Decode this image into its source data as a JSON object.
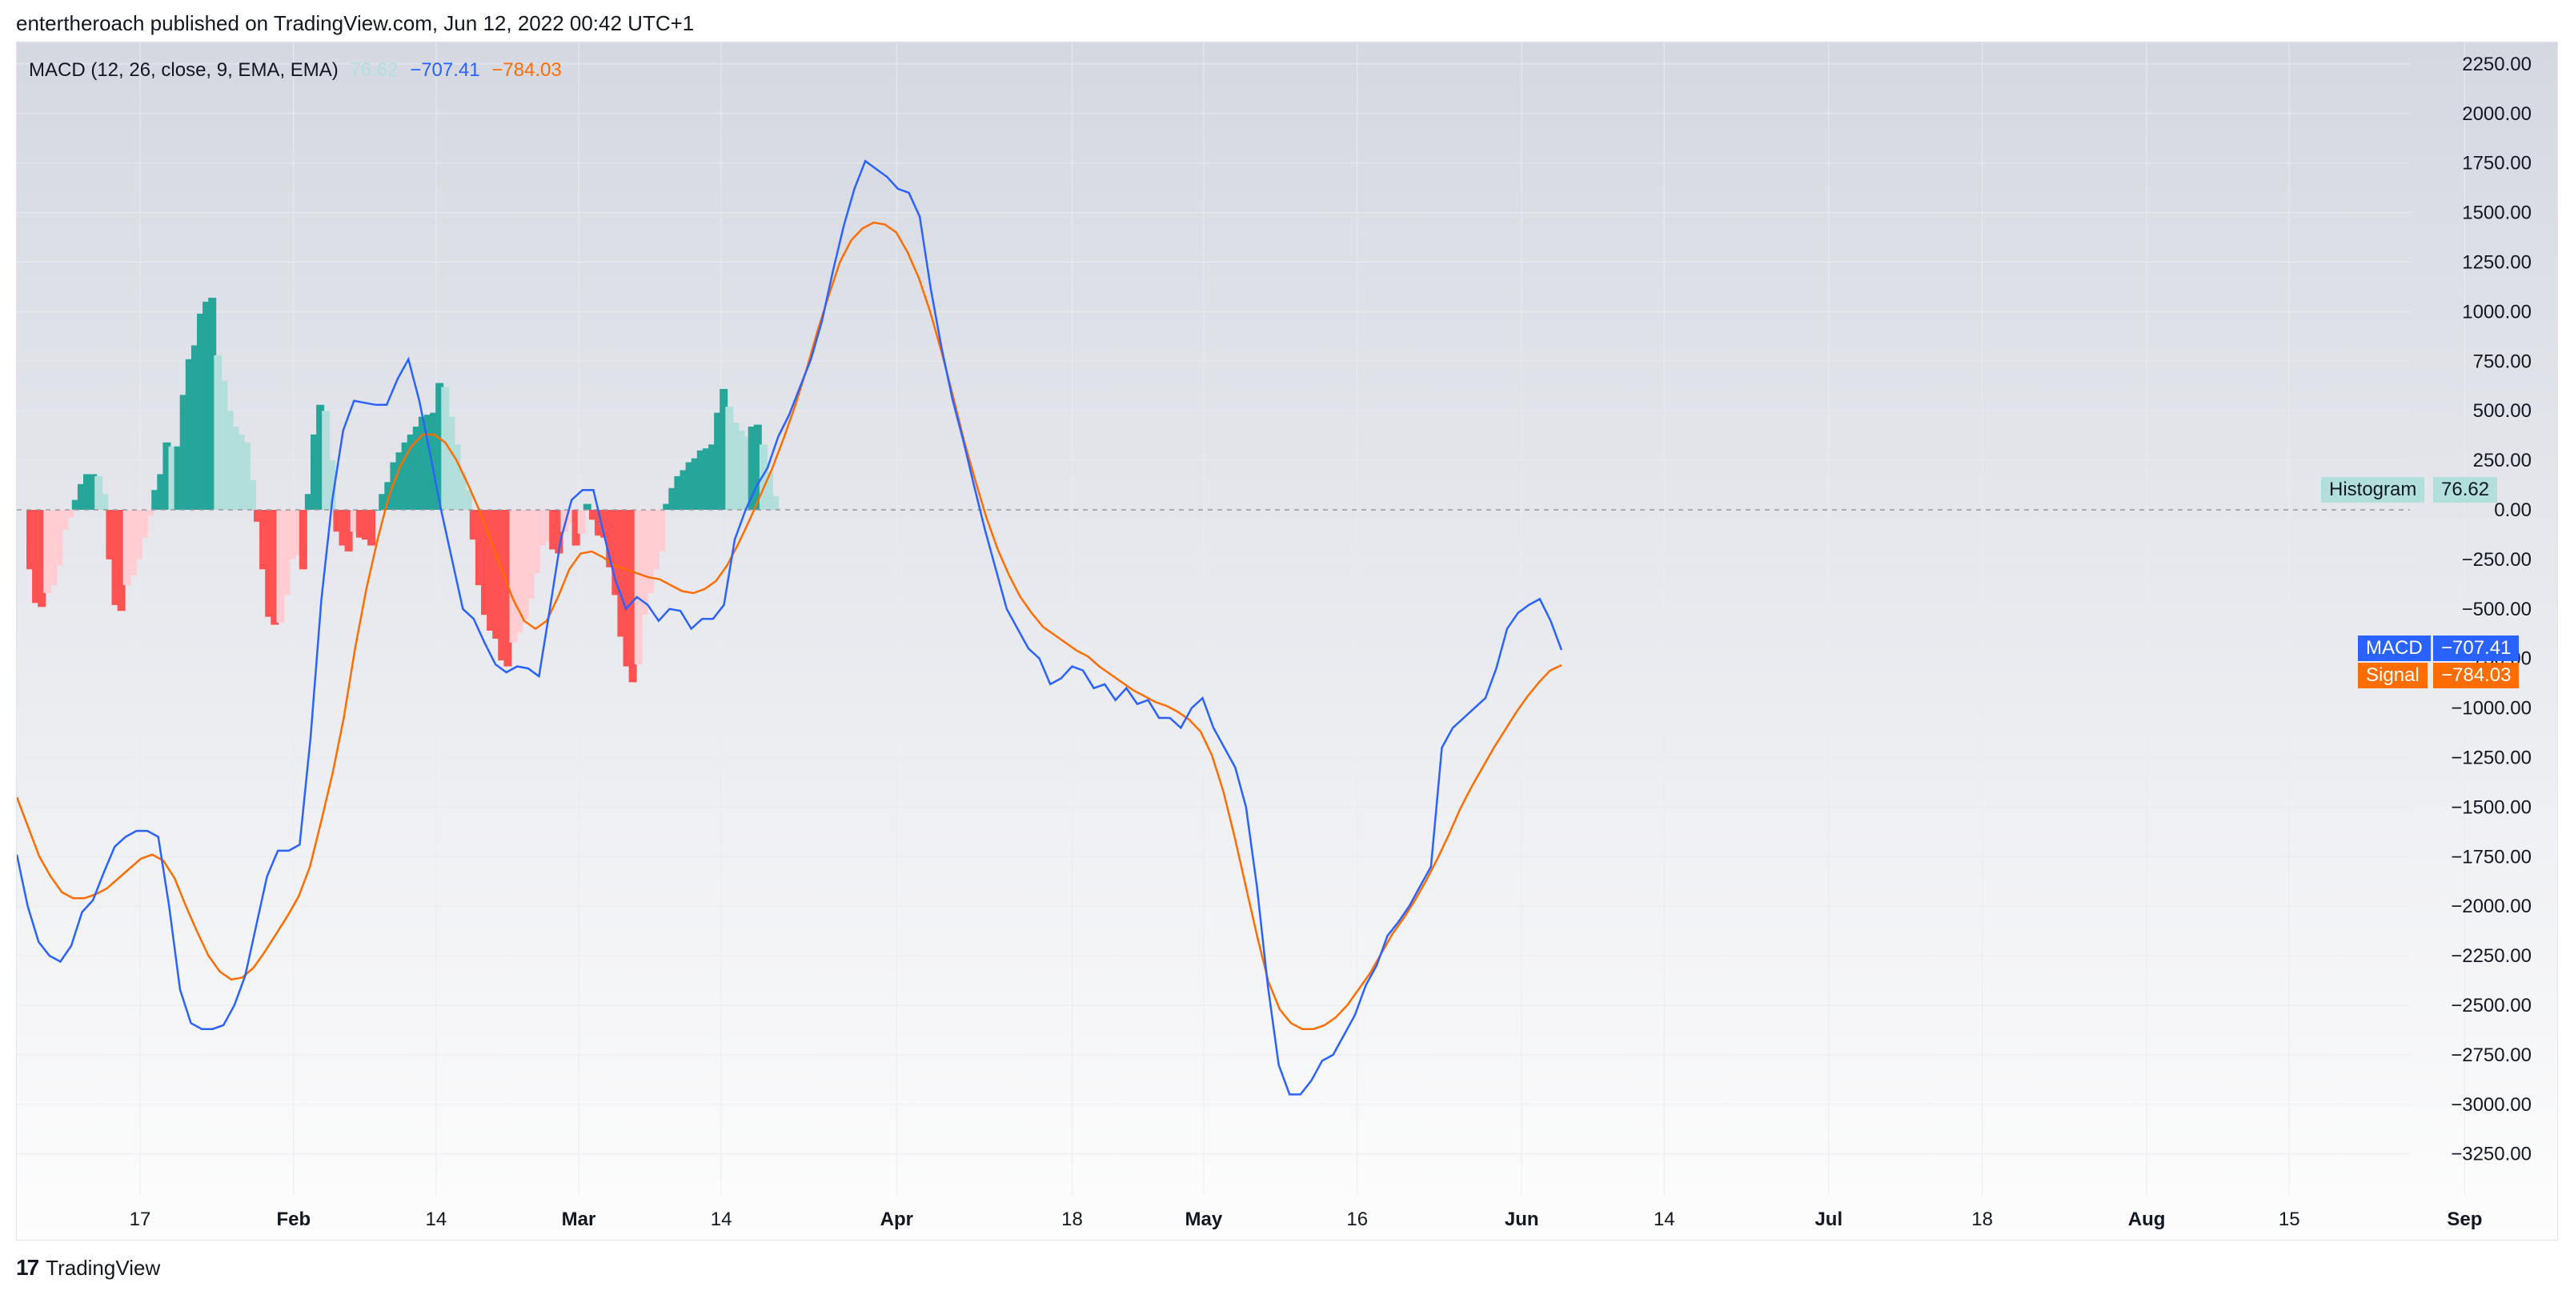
{
  "header": {
    "attribution": "entertheroach published on TradingView.com, Jun 12, 2022 00:42 UTC+1"
  },
  "legend": {
    "indicator": "MACD (12, 26, close, 9, EMA, EMA)",
    "histogram_value": "76.62",
    "macd_value": "−707.41",
    "signal_value": "−784.03"
  },
  "labels": {
    "histogram_name": "Histogram",
    "histogram_value": "76.62",
    "macd_name": "MACD",
    "macd_value": "−707.41",
    "signal_name": "Signal",
    "signal_value": "−784.03"
  },
  "footer": {
    "brand": "TradingView",
    "logo_glyph": "17"
  },
  "colors": {
    "macd": "#2962ff",
    "signal": "#ff6d00",
    "hist_pos_strong": "#26a69a",
    "hist_pos_weak": "#b2dfdb",
    "hist_neg_strong": "#ff5252",
    "hist_neg_weak": "#ffcdd2",
    "grid": "#e9ebf0",
    "bg_top": "#d6d9e2",
    "bg_bottom": "#fbfbfc"
  },
  "chart_data": {
    "type": "line",
    "title": "MACD (12, 26, close, 9, EMA, EMA)",
    "ylim": [
      -3450,
      2350
    ],
    "y_ticks": [
      2250,
      2000,
      1750,
      1500,
      1250,
      1000,
      750,
      500,
      250,
      0,
      -250,
      -500,
      -750,
      -1000,
      -1250,
      -1500,
      -1750,
      -2000,
      -2250,
      -2500,
      -2750,
      -3000,
      -3250
    ],
    "y_tick_labels": [
      "2250.00",
      "2000.00",
      "1750.00",
      "1500.00",
      "1250.00",
      "1000.00",
      "750.00",
      "500.00",
      "250.00",
      "0.00",
      "−250.00",
      "−500.00",
      "−750.00",
      "−1000.00",
      "−1250.00",
      "−1500.00",
      "−1750.00",
      "−2000.00",
      "−2250.00",
      "−2500.00",
      "−2750.00",
      "−3000.00",
      "−3250.00"
    ],
    "x_range": [
      0,
      242
    ],
    "x_ticks": [
      {
        "x": 10,
        "label": "17",
        "bold": false
      },
      {
        "x": 24,
        "label": "Feb",
        "bold": true
      },
      {
        "x": 37,
        "label": "14",
        "bold": false
      },
      {
        "x": 50,
        "label": "Mar",
        "bold": true
      },
      {
        "x": 63,
        "label": "14",
        "bold": false
      },
      {
        "x": 79,
        "label": "Apr",
        "bold": true
      },
      {
        "x": 95,
        "label": "18",
        "bold": false
      },
      {
        "x": 107,
        "label": "May",
        "bold": true
      },
      {
        "x": 121,
        "label": "16",
        "bold": false
      },
      {
        "x": 136,
        "label": "Jun",
        "bold": true
      },
      {
        "x": 149,
        "label": "14",
        "bold": false
      },
      {
        "x": 164,
        "label": "Jul",
        "bold": true
      },
      {
        "x": 178,
        "label": "18",
        "bold": false
      },
      {
        "x": 193,
        "label": "Aug",
        "bold": true
      },
      {
        "x": 206,
        "label": "15",
        "bold": false
      },
      {
        "x": 222,
        "label": "Sep",
        "bold": true
      }
    ],
    "series": [
      {
        "name": "MACD",
        "values": [
          -1740,
          -2000,
          -2180,
          -2250,
          -2280,
          -2200,
          -2030,
          -1970,
          -1830,
          -1700,
          -1650,
          -1620,
          -1620,
          -1650,
          -2000,
          -2420,
          -2590,
          -2620,
          -2620,
          -2600,
          -2500,
          -2350,
          -2100,
          -1850,
          -1720,
          -1720,
          -1690,
          -1150,
          -450,
          50,
          400,
          550,
          540,
          530,
          530,
          660,
          760,
          550,
          280,
          0,
          -250,
          -500,
          -550,
          -670,
          -780,
          -820,
          -790,
          -800,
          -840,
          -500,
          -150,
          50,
          100,
          100,
          -130,
          -350,
          -500,
          -440,
          -480,
          -560,
          -500,
          -510,
          -600,
          -550,
          -550,
          -480,
          -150,
          0,
          120,
          210,
          370,
          480,
          620,
          760,
          950,
          1200,
          1430,
          1620,
          1760,
          1720,
          1680,
          1620,
          1600,
          1480,
          1120,
          820,
          560,
          350,
          120,
          -100,
          -300,
          -500,
          -600,
          -700,
          -750,
          -880,
          -850,
          -790,
          -810,
          -900,
          -880,
          -960,
          -900,
          -980,
          -960,
          -1050,
          -1050,
          -1100,
          -1000,
          -950,
          -1100,
          -1200,
          -1300,
          -1500,
          -1900,
          -2400,
          -2800,
          -2950,
          -2950,
          -2880,
          -2780,
          -2750,
          -2650,
          -2550,
          -2400,
          -2300,
          -2150,
          -2080,
          -2000,
          -1900,
          -1800,
          -1200,
          -1100,
          -1050,
          -1000,
          -950,
          -800,
          -600,
          -520,
          -480,
          -450,
          -560,
          -707
        ]
      },
      {
        "name": "Signal",
        "values": [
          -1450,
          -1600,
          -1750,
          -1850,
          -1930,
          -1960,
          -1960,
          -1940,
          -1910,
          -1860,
          -1810,
          -1760,
          -1740,
          -1770,
          -1860,
          -2000,
          -2130,
          -2250,
          -2330,
          -2370,
          -2360,
          -2310,
          -2230,
          -2140,
          -2050,
          -1950,
          -1800,
          -1570,
          -1330,
          -1050,
          -700,
          -400,
          -150,
          70,
          220,
          320,
          380,
          380,
          340,
          250,
          130,
          0,
          -150,
          -300,
          -450,
          -560,
          -600,
          -560,
          -440,
          -300,
          -220,
          -210,
          -240,
          -280,
          -300,
          -320,
          -340,
          -350,
          -380,
          -410,
          -420,
          -400,
          -360,
          -280,
          -170,
          -50,
          80,
          210,
          360,
          520,
          700,
          900,
          1080,
          1250,
          1360,
          1420,
          1450,
          1440,
          1400,
          1300,
          1170,
          1000,
          800,
          580,
          350,
          150,
          -40,
          -200,
          -330,
          -440,
          -520,
          -590,
          -630,
          -670,
          -710,
          -740,
          -790,
          -830,
          -870,
          -910,
          -940,
          -970,
          -990,
          -1020,
          -1060,
          -1120,
          -1240,
          -1420,
          -1650,
          -1900,
          -2150,
          -2380,
          -2520,
          -2590,
          -2620,
          -2620,
          -2600,
          -2560,
          -2500,
          -2420,
          -2340,
          -2240,
          -2140,
          -2060,
          -1970,
          -1870,
          -1760,
          -1640,
          -1510,
          -1400,
          -1300,
          -1200,
          -1110,
          -1020,
          -940,
          -870,
          -810,
          -784
        ]
      },
      {
        "name": "Histogram",
        "values": [
          -280,
          -470,
          -500,
          -440,
          -400,
          -300,
          -100,
          -50,
          0,
          0,
          0,
          0,
          0,
          0,
          0,
          0,
          0,
          0,
          0,
          0,
          0,
          0,
          0,
          0,
          0,
          0,
          0,
          0,
          0,
          0,
          0,
          0,
          0,
          0,
          0,
          0,
          0,
          0,
          0,
          0,
          0,
          0,
          0,
          0,
          0,
          0,
          0,
          0,
          0,
          0,
          0,
          0,
          0,
          0,
          0,
          0,
          0,
          0,
          0,
          0,
          0,
          0,
          0,
          0,
          0,
          0,
          0,
          0,
          0,
          0,
          0,
          0,
          0,
          0,
          0,
          0,
          0,
          0,
          0,
          0,
          0,
          0,
          0,
          0,
          0,
          0,
          0,
          0,
          0,
          0,
          0,
          0,
          0,
          0,
          0,
          0,
          0,
          0,
          0,
          0,
          0,
          0,
          0,
          0,
          0,
          0,
          0,
          0,
          0,
          0,
          0,
          0,
          0,
          0,
          0,
          0,
          0,
          0,
          0,
          0,
          0,
          0,
          0,
          0,
          0,
          0,
          0,
          0,
          0,
          0,
          0,
          0,
          0,
          0,
          0,
          0,
          0,
          0,
          0,
          0,
          0,
          0,
          0,
          0,
          77
        ]
      }
    ],
    "histogram_bars": [
      [
        0,
        -300
      ],
      [
        1,
        -470
      ],
      [
        2,
        -490
      ],
      [
        3,
        -420
      ],
      [
        4,
        -380
      ],
      [
        5,
        -280
      ],
      [
        6,
        -100
      ],
      [
        7,
        -40
      ],
      [
        8,
        50
      ],
      [
        9,
        130
      ],
      [
        10,
        180
      ],
      [
        11,
        180
      ],
      [
        12,
        170
      ],
      [
        13,
        80
      ],
      [
        14,
        -250
      ],
      [
        15,
        -480
      ],
      [
        16,
        -510
      ],
      [
        17,
        -380
      ],
      [
        18,
        -330
      ],
      [
        19,
        -250
      ],
      [
        20,
        -140
      ],
      [
        21,
        -30
      ],
      [
        22,
        100
      ],
      [
        23,
        180
      ],
      [
        24,
        340
      ],
      [
        25,
        320
      ],
      [
        26,
        320
      ],
      [
        27,
        580
      ],
      [
        28,
        760
      ],
      [
        29,
        830
      ],
      [
        30,
        990
      ],
      [
        31,
        1050
      ],
      [
        32,
        1070
      ],
      [
        33,
        780
      ],
      [
        34,
        650
      ],
      [
        35,
        500
      ],
      [
        36,
        420
      ],
      [
        37,
        380
      ],
      [
        38,
        340
      ],
      [
        39,
        150
      ],
      [
        40,
        -60
      ],
      [
        41,
        -300
      ],
      [
        42,
        -540
      ],
      [
        43,
        -580
      ],
      [
        44,
        -570
      ],
      [
        45,
        -430
      ],
      [
        46,
        -250
      ],
      [
        47,
        -230
      ],
      [
        48,
        -300
      ],
      [
        49,
        80
      ],
      [
        50,
        380
      ],
      [
        51,
        530
      ],
      [
        52,
        500
      ],
      [
        53,
        250
      ],
      [
        54,
        -110
      ],
      [
        55,
        -180
      ],
      [
        56,
        -210
      ],
      [
        57,
        -110
      ],
      [
        58,
        -140
      ],
      [
        59,
        -150
      ],
      [
        60,
        -180
      ],
      [
        61,
        0
      ],
      [
        62,
        80
      ],
      [
        63,
        140
      ],
      [
        64,
        240
      ],
      [
        65,
        290
      ],
      [
        66,
        340
      ],
      [
        67,
        380
      ],
      [
        68,
        420
      ],
      [
        69,
        470
      ],
      [
        70,
        480
      ],
      [
        71,
        490
      ],
      [
        72,
        640
      ],
      [
        73,
        620
      ],
      [
        74,
        470
      ],
      [
        75,
        330
      ],
      [
        76,
        190
      ],
      [
        77,
        100
      ],
      [
        78,
        -150
      ],
      [
        79,
        -380
      ],
      [
        80,
        -530
      ],
      [
        81,
        -610
      ],
      [
        82,
        -650
      ],
      [
        83,
        -760
      ],
      [
        84,
        -790
      ],
      [
        85,
        -670
      ],
      [
        86,
        -620
      ],
      [
        87,
        -550
      ],
      [
        88,
        -450
      ],
      [
        89,
        -320
      ],
      [
        90,
        -180
      ],
      [
        91,
        -160
      ],
      [
        92,
        -200
      ],
      [
        93,
        -220
      ],
      [
        94,
        -110
      ],
      [
        95,
        -70
      ],
      [
        96,
        -180
      ],
      [
        97,
        -120
      ],
      [
        98,
        30
      ],
      [
        99,
        -50
      ],
      [
        100,
        -130
      ],
      [
        101,
        -140
      ],
      [
        102,
        -290
      ],
      [
        103,
        -430
      ],
      [
        104,
        -640
      ],
      [
        105,
        -790
      ],
      [
        106,
        -870
      ],
      [
        107,
        -780
      ],
      [
        108,
        -530
      ],
      [
        109,
        -420
      ],
      [
        110,
        -300
      ],
      [
        111,
        -210
      ],
      [
        112,
        30
      ],
      [
        113,
        110
      ],
      [
        114,
        170
      ],
      [
        115,
        200
      ],
      [
        116,
        240
      ],
      [
        117,
        260
      ],
      [
        118,
        300
      ],
      [
        119,
        310
      ],
      [
        120,
        330
      ],
      [
        121,
        490
      ],
      [
        122,
        610
      ],
      [
        123,
        520
      ],
      [
        124,
        440
      ],
      [
        125,
        400
      ],
      [
        126,
        370
      ],
      [
        127,
        420
      ],
      [
        128,
        430
      ],
      [
        129,
        330
      ],
      [
        130,
        190
      ],
      [
        131,
        70
      ]
    ]
  }
}
